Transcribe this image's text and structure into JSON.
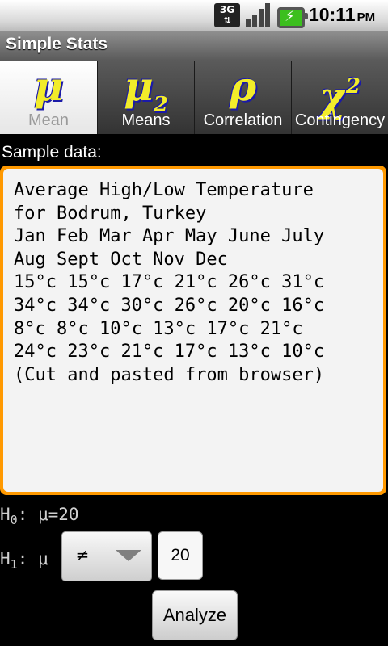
{
  "status_bar": {
    "network": "3G",
    "network_arrows": "⇅",
    "time": "10:11",
    "ampm": "PM",
    "icons": [
      "3g-data-icon",
      "signal-strength-icon",
      "battery-charging-icon"
    ],
    "battery_color": "#3cbf1e"
  },
  "app": {
    "title": "Simple Stats"
  },
  "tabs": [
    {
      "label": "Mean",
      "glyph": "μ",
      "active": true
    },
    {
      "label": "Means",
      "glyph": "μ",
      "glyph_sub": "2",
      "active": false
    },
    {
      "label": "Correlation",
      "glyph": "ρ",
      "active": false
    },
    {
      "label": "Contingency",
      "glyph": "χ",
      "glyph_sup": "2",
      "active": false
    }
  ],
  "sample": {
    "label": "Sample data:",
    "lines": [
      "Average High/Low Temperature",
      "for Bodrum, Turkey",
      "Jan Feb Mar Apr May June July",
      "Aug Sept Oct Nov Dec",
      "15°c 15°c 17°c 21°c 26°c 31°c",
      "34°c 34°c 30°c 26°c 20°c 16°c",
      "8°c 8°c 10°c 13°c 17°c 21°c",
      "24°c 23°c 21°c 17°c 13°c 10°c",
      "(Cut and pasted from browser)"
    ]
  },
  "hypothesis": {
    "h0_letter": "H",
    "h0_sub": "0",
    "h0_rest": ": μ=20",
    "h1_letter": "H",
    "h1_sub": "1",
    "h1_rest": ": μ",
    "operator": "≠",
    "value": "20"
  },
  "actions": {
    "analyze_label": "Analyze"
  },
  "colors": {
    "accent": "#ff9900",
    "glyph_fill": "#f2ec2a",
    "glyph_shadow": "#1a1aa8"
  }
}
